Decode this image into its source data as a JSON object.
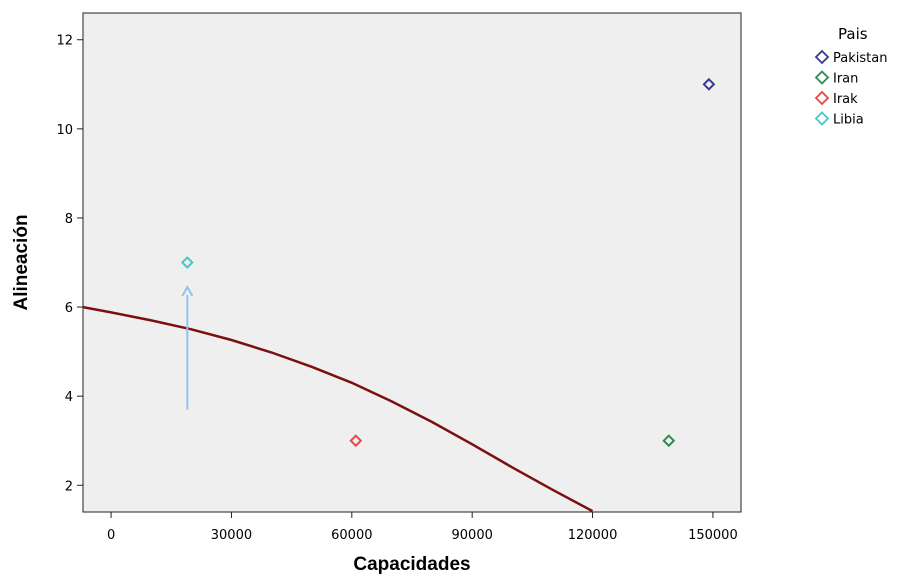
{
  "chart_data": {
    "type": "scatter",
    "xlabel": "Capacidades",
    "ylabel": "Alineación",
    "xlim": [
      -7000,
      157000
    ],
    "ylim": [
      1.4,
      12.6
    ],
    "xticks": [
      0,
      30000,
      60000,
      90000,
      120000,
      150000
    ],
    "yticks": [
      2,
      4,
      6,
      8,
      10,
      12
    ],
    "grid": false,
    "background": "#efefef",
    "legend": {
      "title": "Pais",
      "placement": "outside-right"
    },
    "series": [
      {
        "name": "Pakistan",
        "color": "#3a3a8c",
        "points": [
          {
            "x": 149000,
            "y": 11
          }
        ]
      },
      {
        "name": "Iran",
        "color": "#2e8b4e",
        "points": [
          {
            "x": 139000,
            "y": 3
          }
        ]
      },
      {
        "name": "Irak",
        "color": "#ee4444",
        "points": [
          {
            "x": 61000,
            "y": 3
          }
        ]
      },
      {
        "name": "Libia",
        "color": "#45c8c8",
        "points": [
          {
            "x": 19000,
            "y": 7
          }
        ]
      }
    ],
    "curve": {
      "color": "#7b1010",
      "points": [
        {
          "x": -7000,
          "y": 6.0
        },
        {
          "x": 0,
          "y": 5.88
        },
        {
          "x": 10000,
          "y": 5.7
        },
        {
          "x": 20000,
          "y": 5.5
        },
        {
          "x": 30000,
          "y": 5.26
        },
        {
          "x": 40000,
          "y": 4.98
        },
        {
          "x": 50000,
          "y": 4.66
        },
        {
          "x": 60000,
          "y": 4.3
        },
        {
          "x": 70000,
          "y": 3.88
        },
        {
          "x": 80000,
          "y": 3.42
        },
        {
          "x": 90000,
          "y": 2.92
        },
        {
          "x": 100000,
          "y": 2.4
        },
        {
          "x": 110000,
          "y": 1.9
        },
        {
          "x": 120000,
          "y": 1.42
        }
      ]
    },
    "arrow": {
      "color": "#8fc3ef",
      "from": {
        "x": 19000,
        "y": 3.7
      },
      "to": {
        "x": 19000,
        "y": 6.45
      }
    }
  }
}
